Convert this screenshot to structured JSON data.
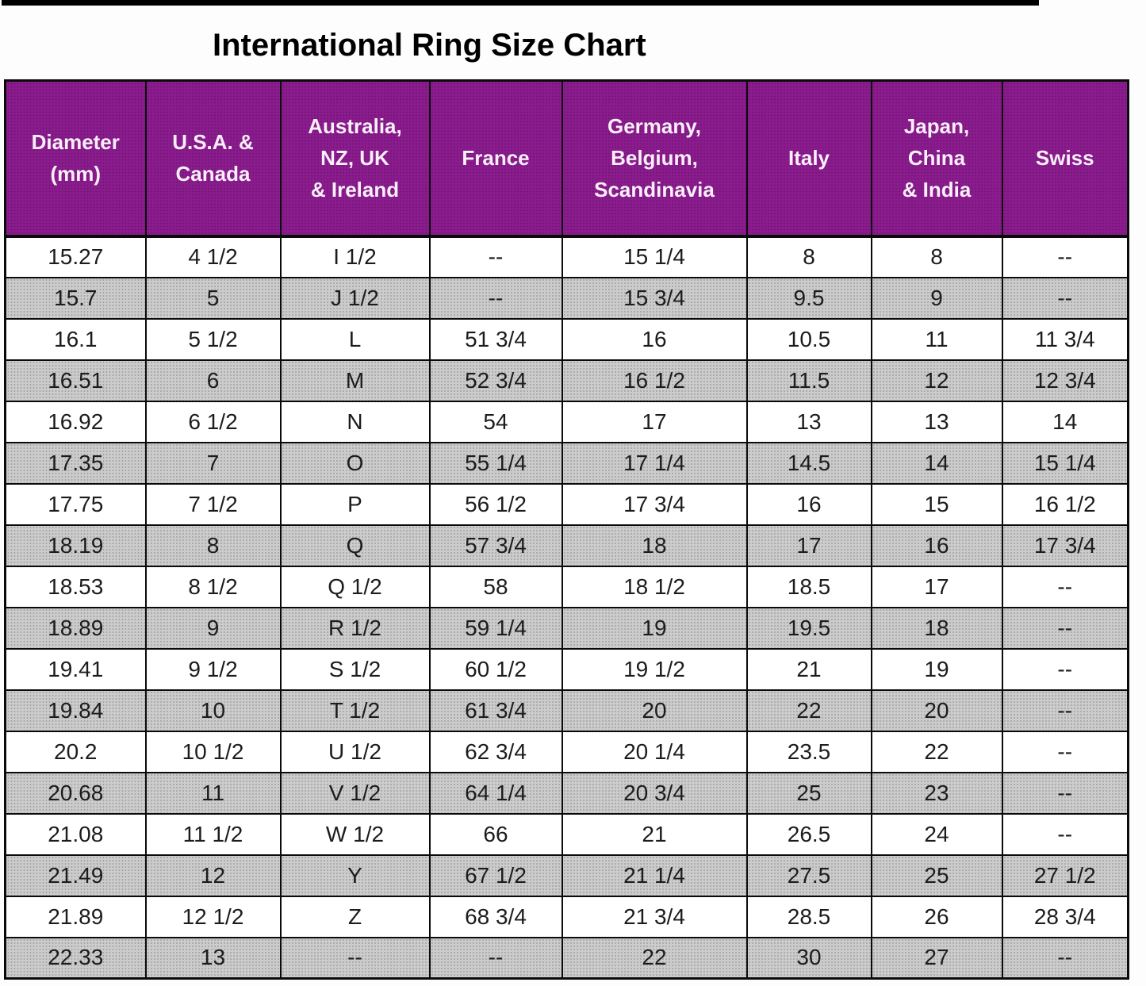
{
  "title": "International Ring Size Chart",
  "style": {
    "header_bg": "#8B1C8E",
    "header_text": "#FAEFFA",
    "row_alt_bg": "#CCCCCC",
    "border_color": "#0A0A0A"
  },
  "chart_data": {
    "type": "table",
    "title": "International Ring Size Chart",
    "columns": [
      "Diameter (mm)",
      "U.S.A. & Canada",
      "Australia, NZ, UK & Ireland",
      "France",
      "Germany, Belgium, Scandinavia",
      "Italy",
      "Japan, China & India",
      "Swiss"
    ],
    "header_lines": [
      [
        "Diameter",
        "(mm)"
      ],
      [
        "U.S.A. &",
        "Canada"
      ],
      [
        "Australia,",
        "NZ, UK",
        "& Ireland"
      ],
      [
        "France"
      ],
      [
        "Germany,",
        "Belgium,",
        "Scandinavia"
      ],
      [
        "Italy"
      ],
      [
        "Japan,",
        "China",
        "& India"
      ],
      [
        "Swiss"
      ]
    ],
    "rows": [
      [
        "15.27",
        "4 1/2",
        "I 1/2",
        "--",
        "15 1/4",
        "8",
        "8",
        "--"
      ],
      [
        "15.7",
        "5",
        "J 1/2",
        "--",
        "15 3/4",
        "9.5",
        "9",
        "--"
      ],
      [
        "16.1",
        "5 1/2",
        "L",
        "51 3/4",
        "16",
        "10.5",
        "11",
        "11 3/4"
      ],
      [
        "16.51",
        "6",
        "M",
        "52 3/4",
        "16 1/2",
        "11.5",
        "12",
        "12 3/4"
      ],
      [
        "16.92",
        "6 1/2",
        "N",
        "54",
        "17",
        "13",
        "13",
        "14"
      ],
      [
        "17.35",
        "7",
        "O",
        "55 1/4",
        "17 1/4",
        "14.5",
        "14",
        "15 1/4"
      ],
      [
        "17.75",
        "7 1/2",
        "P",
        "56 1/2",
        "17 3/4",
        "16",
        "15",
        "16 1/2"
      ],
      [
        "18.19",
        "8",
        "Q",
        "57 3/4",
        "18",
        "17",
        "16",
        "17 3/4"
      ],
      [
        "18.53",
        "8 1/2",
        "Q 1/2",
        "58",
        "18 1/2",
        "18.5",
        "17",
        "--"
      ],
      [
        "18.89",
        "9",
        "R 1/2",
        "59 1/4",
        "19",
        "19.5",
        "18",
        "--"
      ],
      [
        "19.41",
        "9 1/2",
        "S 1/2",
        "60 1/2",
        "19 1/2",
        "21",
        "19",
        "--"
      ],
      [
        "19.84",
        "10",
        "T 1/2",
        "61 3/4",
        "20",
        "22",
        "20",
        "--"
      ],
      [
        "20.2",
        "10 1/2",
        "U 1/2",
        "62 3/4",
        "20 1/4",
        "23.5",
        "22",
        "--"
      ],
      [
        "20.68",
        "11",
        "V 1/2",
        "64 1/4",
        "20 3/4",
        "25",
        "23",
        "--"
      ],
      [
        "21.08",
        "11 1/2",
        "W 1/2",
        "66",
        "21",
        "26.5",
        "24",
        "--"
      ],
      [
        "21.49",
        "12",
        "Y",
        "67 1/2",
        "21 1/4",
        "27.5",
        "25",
        "27 1/2"
      ],
      [
        "21.89",
        "12 1/2",
        "Z",
        "68 3/4",
        "21 3/4",
        "28.5",
        "26",
        "28 3/4"
      ],
      [
        "22.33",
        "13",
        "--",
        "--",
        "22",
        "30",
        "27",
        "--"
      ]
    ]
  }
}
